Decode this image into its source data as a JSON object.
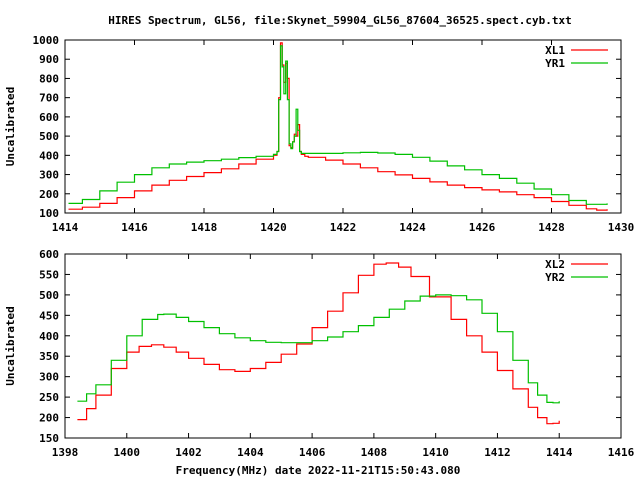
{
  "title": "HIRES Spectrum, GL56, file:Skynet_59904_GL56_87604_36525.spect.cyb.txt",
  "colors": {
    "red": "#ff0000",
    "green": "#00c000"
  },
  "chart_data": [
    {
      "type": "line",
      "xlabel": "",
      "ylabel": "Uncalibrated",
      "xlim": [
        1414,
        1430
      ],
      "ylim": [
        100,
        1000
      ],
      "xticks": [
        "1414",
        "1416",
        "1418",
        "1420",
        "1422",
        "1424",
        "1426",
        "1428",
        "1430"
      ],
      "yticks": [
        "100",
        "200",
        "300",
        "400",
        "500",
        "600",
        "700",
        "800",
        "900",
        "1000"
      ],
      "legend": "top-right",
      "grid": false,
      "series": [
        {
          "name": "XL1",
          "color": "#ff0000",
          "x": [
            1414.1,
            1414.5,
            1415,
            1415.5,
            1416,
            1416.5,
            1417,
            1417.5,
            1418,
            1418.5,
            1419,
            1419.5,
            1420,
            1420.1,
            1420.15,
            1420.2,
            1420.25,
            1420.3,
            1420.35,
            1420.4,
            1420.45,
            1420.5,
            1420.55,
            1420.6,
            1420.65,
            1420.7,
            1420.75,
            1420.8,
            1420.9,
            1421,
            1421.5,
            1422,
            1422.5,
            1423,
            1423.5,
            1424,
            1424.5,
            1425,
            1425.5,
            1426,
            1426.5,
            1427,
            1427.5,
            1428,
            1428.5,
            1429,
            1429.3,
            1429.6
          ],
          "y": [
            120,
            130,
            150,
            180,
            215,
            245,
            270,
            290,
            310,
            330,
            355,
            380,
            400,
            420,
            700,
            985,
            870,
            780,
            880,
            800,
            450,
            440,
            470,
            510,
            500,
            560,
            420,
            405,
            395,
            390,
            375,
            355,
            335,
            315,
            298,
            280,
            262,
            245,
            232,
            220,
            210,
            195,
            180,
            160,
            140,
            122,
            115,
            120
          ]
        },
        {
          "name": "YR1",
          "color": "#00c000",
          "x": [
            1414.1,
            1414.5,
            1415,
            1415.5,
            1416,
            1416.5,
            1417,
            1417.5,
            1418,
            1418.5,
            1419,
            1419.5,
            1420,
            1420.1,
            1420.15,
            1420.2,
            1420.25,
            1420.3,
            1420.35,
            1420.4,
            1420.45,
            1420.5,
            1420.55,
            1420.6,
            1420.65,
            1420.7,
            1420.75,
            1420.8,
            1420.9,
            1421,
            1421.5,
            1422,
            1422.5,
            1423,
            1423.5,
            1424,
            1424.5,
            1425,
            1425.5,
            1426,
            1426.5,
            1427,
            1427.5,
            1428,
            1428.5,
            1429,
            1429.3,
            1429.6
          ],
          "y": [
            150,
            170,
            215,
            260,
            300,
            335,
            355,
            365,
            372,
            380,
            388,
            395,
            405,
            420,
            690,
            970,
            860,
            720,
            890,
            690,
            460,
            435,
            470,
            500,
            640,
            530,
            420,
            410,
            410,
            410,
            410,
            413,
            415,
            412,
            405,
            390,
            370,
            345,
            325,
            300,
            280,
            255,
            225,
            195,
            165,
            145,
            145,
            150
          ]
        }
      ]
    },
    {
      "type": "line",
      "xlabel": "Frequency(MHz) date 2022-11-21T15:50:43.080",
      "ylabel": "Uncalibrated",
      "xlim": [
        1398,
        1416
      ],
      "ylim": [
        150,
        600
      ],
      "xticks": [
        "1398",
        "1400",
        "1402",
        "1404",
        "1406",
        "1408",
        "1410",
        "1412",
        "1414",
        "1416"
      ],
      "yticks": [
        "150",
        "200",
        "250",
        "300",
        "350",
        "400",
        "450",
        "500",
        "550",
        "600"
      ],
      "legend": "top-right",
      "grid": false,
      "series": [
        {
          "name": "XL2",
          "color": "#ff0000",
          "x": [
            1398.4,
            1398.7,
            1399,
            1399.5,
            1400,
            1400.4,
            1400.8,
            1401.2,
            1401.6,
            1402,
            1402.5,
            1403,
            1403.5,
            1404,
            1404.5,
            1405,
            1405.5,
            1406,
            1406.5,
            1407,
            1407.5,
            1408,
            1408.4,
            1408.8,
            1409.2,
            1409.8,
            1410.5,
            1411,
            1411.5,
            1412,
            1412.5,
            1413,
            1413.3,
            1413.6,
            1413.8,
            1414
          ],
          "y": [
            195,
            222,
            255,
            320,
            360,
            374,
            378,
            372,
            360,
            345,
            330,
            317,
            313,
            320,
            335,
            355,
            380,
            420,
            460,
            505,
            548,
            575,
            578,
            568,
            545,
            495,
            440,
            400,
            360,
            315,
            270,
            225,
            200,
            185,
            186,
            192
          ]
        },
        {
          "name": "YR2",
          "color": "#00c000",
          "x": [
            1398.4,
            1398.7,
            1399,
            1399.5,
            1400,
            1400.5,
            1401,
            1401.2,
            1401.6,
            1402,
            1402.5,
            1403,
            1403.5,
            1404,
            1404.5,
            1405,
            1405.5,
            1406,
            1406.5,
            1407,
            1407.5,
            1408,
            1408.5,
            1409,
            1409.5,
            1410,
            1410.5,
            1411,
            1411.5,
            1412,
            1412.5,
            1413,
            1413.3,
            1413.6,
            1413.8,
            1414
          ],
          "y": [
            240,
            258,
            280,
            340,
            400,
            440,
            452,
            453,
            445,
            435,
            420,
            405,
            395,
            388,
            384,
            383,
            383,
            388,
            397,
            410,
            425,
            445,
            465,
            485,
            497,
            500,
            498,
            488,
            455,
            410,
            340,
            285,
            255,
            237,
            236,
            240
          ]
        }
      ]
    }
  ]
}
